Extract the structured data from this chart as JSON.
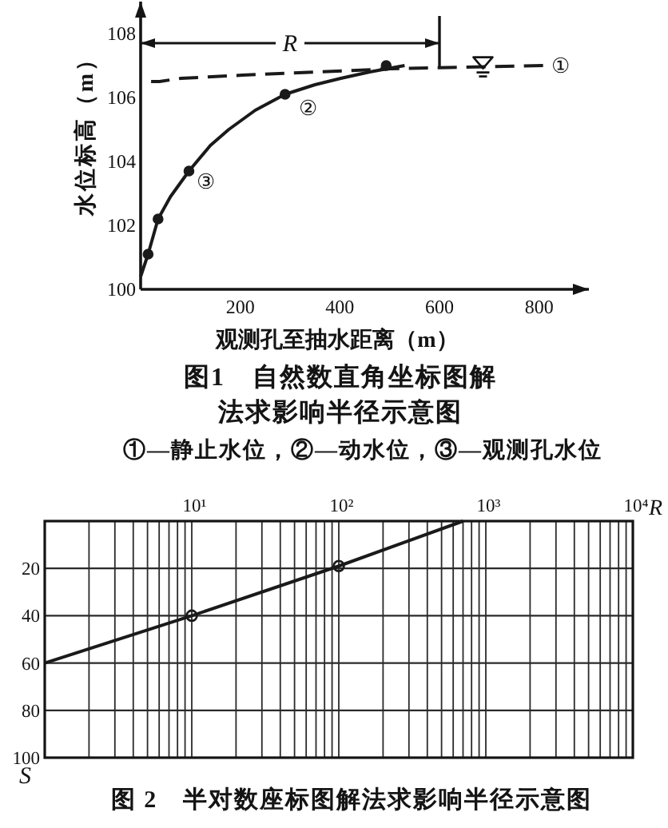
{
  "chart_data": [
    {
      "type": "line",
      "title": "图1　自然数直角坐标图解法求影响半径示意图",
      "subtitle": "①—静止水位，②—动水位，③—观测孔水位",
      "xlabel": "观测孔至抽水距离（m）",
      "ylabel": "水位标高（m）",
      "xlim": [
        0,
        900
      ],
      "ylim": [
        100,
        109
      ],
      "xticks": [
        200,
        400,
        600,
        800
      ],
      "yticks": [
        100,
        102,
        104,
        106,
        108
      ],
      "series": [
        {
          "name": "①",
          "type": "line",
          "line_style": "dashed",
          "color": "#1a1a1a",
          "x": [
            21,
            38,
            81,
            204,
            504,
            808
          ],
          "values": [
            106.5,
            106.5,
            106.6,
            106.7,
            106.9,
            107.0
          ]
        },
        {
          "name": "②",
          "type": "line",
          "line_style": "solid",
          "color": "#1a1a1a",
          "x": [
            0,
            15,
            35,
            60,
            97,
            140,
            177,
            230,
            290,
            350,
            402,
            460,
            530
          ],
          "values": [
            100.4,
            101.1,
            102.2,
            102.9,
            103.7,
            104.5,
            105.0,
            105.6,
            106.1,
            106.4,
            106.6,
            106.8,
            107.0
          ]
        },
        {
          "name": "③",
          "type": "scatter",
          "marker": "circle",
          "color": "#1a1a1a",
          "x": [
            15,
            35,
            97,
            290,
            493
          ],
          "values": [
            101.1,
            102.2,
            103.7,
            106.1,
            107.0
          ]
        }
      ],
      "ref_lines": [
        {
          "axis": "x",
          "value": 600
        }
      ],
      "annotations": [
        {
          "text": "R",
          "x": 600,
          "y": 107.7
        }
      ]
    },
    {
      "type": "line",
      "title": "图 2　半对数座标图解法求影响半径示意图",
      "xlabel": "R",
      "ylabel": "S",
      "log": "x",
      "grid": true,
      "xlim": [
        1,
        10000
      ],
      "ylim": [
        100,
        0
      ],
      "xticks": [
        {
          "value": 10,
          "label": "10¹"
        },
        {
          "value": 100,
          "label": "10²"
        },
        {
          "value": 1000,
          "label": "10³"
        },
        {
          "value": 10000,
          "label": "10⁴"
        }
      ],
      "yticks": [
        20,
        40,
        60,
        80,
        100
      ],
      "series": [
        {
          "type": "line",
          "color": "#1a1a1a",
          "x": [
            1,
            10,
            100,
            700
          ],
          "values": [
            60,
            40,
            19,
            0
          ]
        },
        {
          "type": "scatter",
          "marker": "circle",
          "color": "#1a1a1a",
          "x": [
            10,
            100
          ],
          "values": [
            40,
            19
          ]
        }
      ]
    }
  ]
}
